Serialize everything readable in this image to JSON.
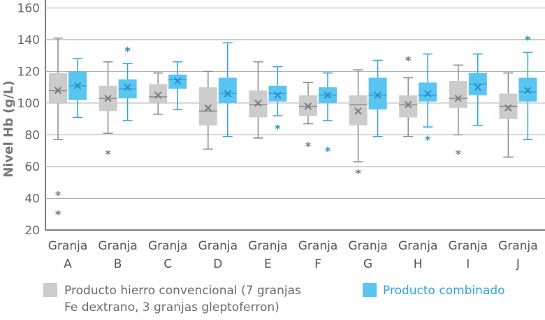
{
  "chart_data": {
    "type": "box",
    "ylabel": "Nivel Hb (g/L)",
    "ylim": [
      20,
      165
    ],
    "yticks": [
      20,
      40,
      60,
      80,
      100,
      120,
      140,
      160
    ],
    "grid": "horizontal",
    "categories": [
      {
        "line1": "Granja",
        "line2": "A"
      },
      {
        "line1": "Granja",
        "line2": "B"
      },
      {
        "line1": "Granja",
        "line2": "C"
      },
      {
        "line1": "Granja",
        "line2": "D"
      },
      {
        "line1": "Granja",
        "line2": "E"
      },
      {
        "line1": "Granja",
        "line2": "F"
      },
      {
        "line1": "Granja",
        "line2": "G"
      },
      {
        "line1": "Granja",
        "line2": "H"
      },
      {
        "line1": "Granja",
        "line2": "I"
      },
      {
        "line1": "Granja",
        "line2": "J"
      }
    ],
    "series": [
      {
        "legend_line1": "Producto hierro convencional (7 granjas",
        "legend_line2": "Fe dextrano, 3 granjas gleptoferron)",
        "color": "#cccccc",
        "whisker_color": "#8c8c8c",
        "marker_color": "#7a7a7a",
        "boxes": [
          {
            "min": 77,
            "q1": 100,
            "median": 108,
            "q3": 119,
            "max": 141,
            "mean": 108,
            "outliers": [
              43,
              31
            ]
          },
          {
            "min": 81,
            "q1": 95,
            "median": 103,
            "q3": 111,
            "max": 126,
            "mean": 103,
            "outliers": [
              69
            ]
          },
          {
            "min": 93,
            "q1": 100,
            "median": 104,
            "q3": 112,
            "max": 119,
            "mean": 105,
            "outliers": []
          },
          {
            "min": 71,
            "q1": 86,
            "median": 95,
            "q3": 110,
            "max": 120,
            "mean": 97,
            "outliers": []
          },
          {
            "min": 78,
            "q1": 91,
            "median": 99,
            "q3": 108,
            "max": 126,
            "mean": 100,
            "outliers": []
          },
          {
            "min": 87,
            "q1": 92,
            "median": 98,
            "q3": 105,
            "max": 113,
            "mean": 98,
            "outliers": [
              74
            ]
          },
          {
            "min": 63,
            "q1": 86,
            "median": 99,
            "q3": 105,
            "max": 121,
            "mean": 95,
            "outliers": [
              57
            ]
          },
          {
            "min": 79,
            "q1": 91,
            "median": 99,
            "q3": 105,
            "max": 116,
            "mean": 99,
            "outliers": [
              128
            ]
          },
          {
            "min": 80,
            "q1": 97,
            "median": 103,
            "q3": 114,
            "max": 124,
            "mean": 103,
            "outliers": [
              69
            ]
          },
          {
            "min": 66,
            "q1": 90,
            "median": 98,
            "q3": 106,
            "max": 119,
            "mean": 97,
            "outliers": []
          }
        ]
      },
      {
        "legend_line1": "Producto combinado",
        "color": "#5bc5f2",
        "whisker_color": "#2aa6dd",
        "marker_color": "#1f8fc7",
        "boxes": [
          {
            "min": 91,
            "q1": 102,
            "median": 111,
            "q3": 120,
            "max": 128,
            "mean": 111,
            "outliers": []
          },
          {
            "min": 89,
            "q1": 103,
            "median": 109,
            "q3": 115,
            "max": 125,
            "mean": 110,
            "outliers": [
              134
            ]
          },
          {
            "min": 96,
            "q1": 109,
            "median": 115,
            "q3": 118,
            "max": 126,
            "mean": 114,
            "outliers": []
          },
          {
            "min": 79,
            "q1": 100,
            "median": 106,
            "q3": 116,
            "max": 138,
            "mean": 106,
            "outliers": []
          },
          {
            "min": 92,
            "q1": 101,
            "median": 106,
            "q3": 111,
            "max": 123,
            "mean": 105,
            "outliers": [
              85
            ]
          },
          {
            "min": 89,
            "q1": 100,
            "median": 105,
            "q3": 110,
            "max": 119,
            "mean": 105,
            "outliers": [
              71
            ]
          },
          {
            "min": 79,
            "q1": 96,
            "median": 105,
            "q3": 116,
            "max": 127,
            "mean": 105,
            "outliers": []
          },
          {
            "min": 85,
            "q1": 101,
            "median": 105,
            "q3": 113,
            "max": 131,
            "mean": 106,
            "outliers": [
              78
            ]
          },
          {
            "min": 86,
            "q1": 105,
            "median": 112,
            "q3": 119,
            "max": 131,
            "mean": 110,
            "outliers": []
          },
          {
            "min": 77,
            "q1": 101,
            "median": 107,
            "q3": 116,
            "max": 132,
            "mean": 108,
            "outliers": [
              141
            ]
          }
        ]
      }
    ]
  }
}
